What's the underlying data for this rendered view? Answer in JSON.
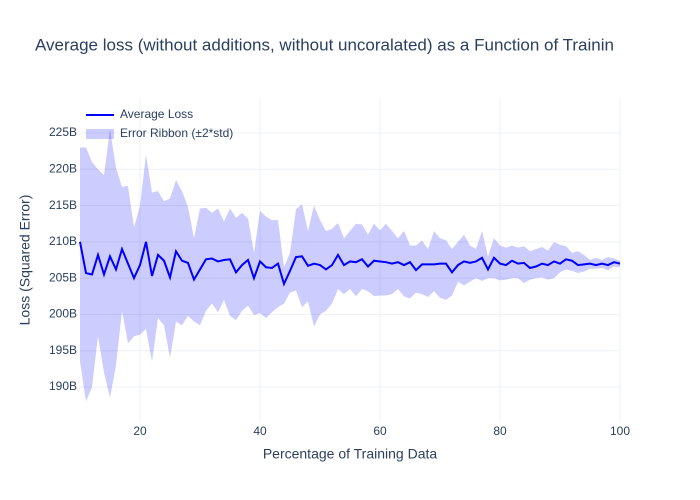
{
  "chart_data": {
    "type": "line",
    "title": "Average loss (without additions, without uncoralated) as a Function of Trainin",
    "x_label": "Percentage of Training Data",
    "y_label": "Loss (Squared Error)",
    "x": [
      10,
      11,
      12,
      13,
      14,
      15,
      16,
      17,
      18,
      19,
      20,
      21,
      22,
      23,
      24,
      25,
      26,
      27,
      28,
      29,
      30,
      31,
      32,
      33,
      34,
      35,
      36,
      37,
      38,
      39,
      40,
      41,
      42,
      43,
      44,
      45,
      46,
      47,
      48,
      49,
      50,
      51,
      52,
      53,
      54,
      55,
      56,
      57,
      58,
      59,
      60,
      61,
      62,
      63,
      64,
      65,
      66,
      67,
      68,
      69,
      70,
      71,
      72,
      73,
      74,
      75,
      76,
      77,
      78,
      79,
      80,
      81,
      82,
      83,
      84,
      85,
      86,
      87,
      88,
      89,
      90,
      91,
      92,
      93,
      94,
      95,
      96,
      97,
      98,
      99,
      100
    ],
    "series": [
      {
        "name": "Average Loss",
        "color": "#0000ff",
        "values": [
          210,
          205.7,
          205.5,
          208.2,
          205.5,
          208,
          206.2,
          209,
          207,
          205,
          206.8,
          210,
          205.3,
          208.2,
          207.4,
          205.1,
          208.7,
          207.4,
          207.1,
          204.8,
          206.2,
          207.6,
          207.7,
          207.3,
          207.5,
          207.6,
          205.8,
          206.8,
          207.5,
          205,
          207.3,
          206.5,
          206.4,
          207,
          204.2,
          206,
          207.9,
          208,
          206.7,
          207,
          206.8,
          206.2,
          206.8,
          208.2,
          206.8,
          207.3,
          207.2,
          207.6,
          206.6,
          207.4,
          207.3,
          207.2,
          207,
          207.2,
          206.8,
          207.2,
          206.1,
          206.9,
          206.9,
          206.9,
          207,
          207,
          205.8,
          206.8,
          207.3,
          207.1,
          207.3,
          207.8,
          206.2,
          207.8,
          207,
          206.8,
          207.4,
          207,
          207.1,
          206.4,
          206.6,
          207,
          206.8,
          207.3,
          207,
          207.6,
          207.4,
          206.8,
          206.9,
          207,
          206.8,
          207,
          206.8,
          207.2,
          207
        ]
      },
      {
        "name": "Error Ribbon (±2*std)",
        "color": "rgba(0,0,255,0.2)",
        "upper": [
          223,
          223,
          221,
          220,
          219.2,
          225.5,
          220.2,
          217.6,
          217.7,
          212,
          215,
          222,
          216.8,
          217,
          215.6,
          216,
          218.5,
          217,
          214.8,
          210.5,
          214.6,
          214.7,
          214,
          214.6,
          212.8,
          214.6,
          213.3,
          214,
          213.2,
          208.5,
          214.3,
          213.5,
          213,
          213,
          206.5,
          208.5,
          214.5,
          215.2,
          211.5,
          215,
          213,
          211.5,
          211.8,
          212.6,
          210.5,
          211.5,
          212.5,
          212.4,
          211,
          212.5,
          211.6,
          212.5,
          211.5,
          210.5,
          211.5,
          209.5,
          209.5,
          210.2,
          209,
          211.5,
          210.5,
          210.2,
          209,
          210,
          211,
          209.5,
          209,
          211.5,
          208,
          210.5,
          209.5,
          209.2,
          209.5,
          209.2,
          209.4,
          208.7,
          209,
          209.3,
          208.8,
          210,
          209.6,
          209.4,
          208.5,
          208.7,
          208.2,
          207.5,
          207.8,
          207.5,
          207.9,
          207.7,
          207.4
        ],
        "lower": [
          193.5,
          188,
          190,
          197,
          192,
          188.5,
          193,
          200.5,
          196,
          197,
          197.2,
          198,
          193.5,
          199.5,
          198.5,
          194,
          199,
          198.5,
          199.8,
          199,
          198.5,
          200.5,
          201.5,
          200.3,
          202,
          199.8,
          199.2,
          200.5,
          201.2,
          199.9,
          200.2,
          199.5,
          200.3,
          201,
          201.5,
          203,
          203.3,
          201,
          201.8,
          198.3,
          200,
          200.5,
          201.5,
          203.5,
          202.8,
          203.5,
          202.5,
          203.5,
          203.2,
          202.5,
          202.6,
          202.6,
          202.8,
          203.5,
          202.5,
          202.2,
          203,
          202.8,
          202.4,
          203.2,
          202.3,
          202,
          202.6,
          204.5,
          204,
          204.5,
          205,
          204.6,
          205,
          205,
          204.7,
          204.8,
          205,
          205,
          204.3,
          204.8,
          205,
          205.1,
          204.8,
          205,
          205.8,
          206.2,
          206,
          205.7,
          205.9,
          206.3,
          206.3,
          206.4,
          206.1,
          206.6,
          206.5
        ]
      }
    ],
    "xlim": [
      10,
      100
    ],
    "xticks": [
      20,
      40,
      60,
      80,
      100
    ],
    "ylim": [
      185.45,
      229.55
    ],
    "yticks": [
      {
        "value": 190,
        "label": "190B"
      },
      {
        "value": 195,
        "label": "195B"
      },
      {
        "value": 200,
        "label": "200B"
      },
      {
        "value": 205,
        "label": "205B"
      },
      {
        "value": 210,
        "label": "210B"
      },
      {
        "value": 215,
        "label": "215B"
      },
      {
        "value": 220,
        "label": "220B"
      },
      {
        "value": 225,
        "label": "225B"
      }
    ],
    "grid": true,
    "legend": "top-left"
  }
}
